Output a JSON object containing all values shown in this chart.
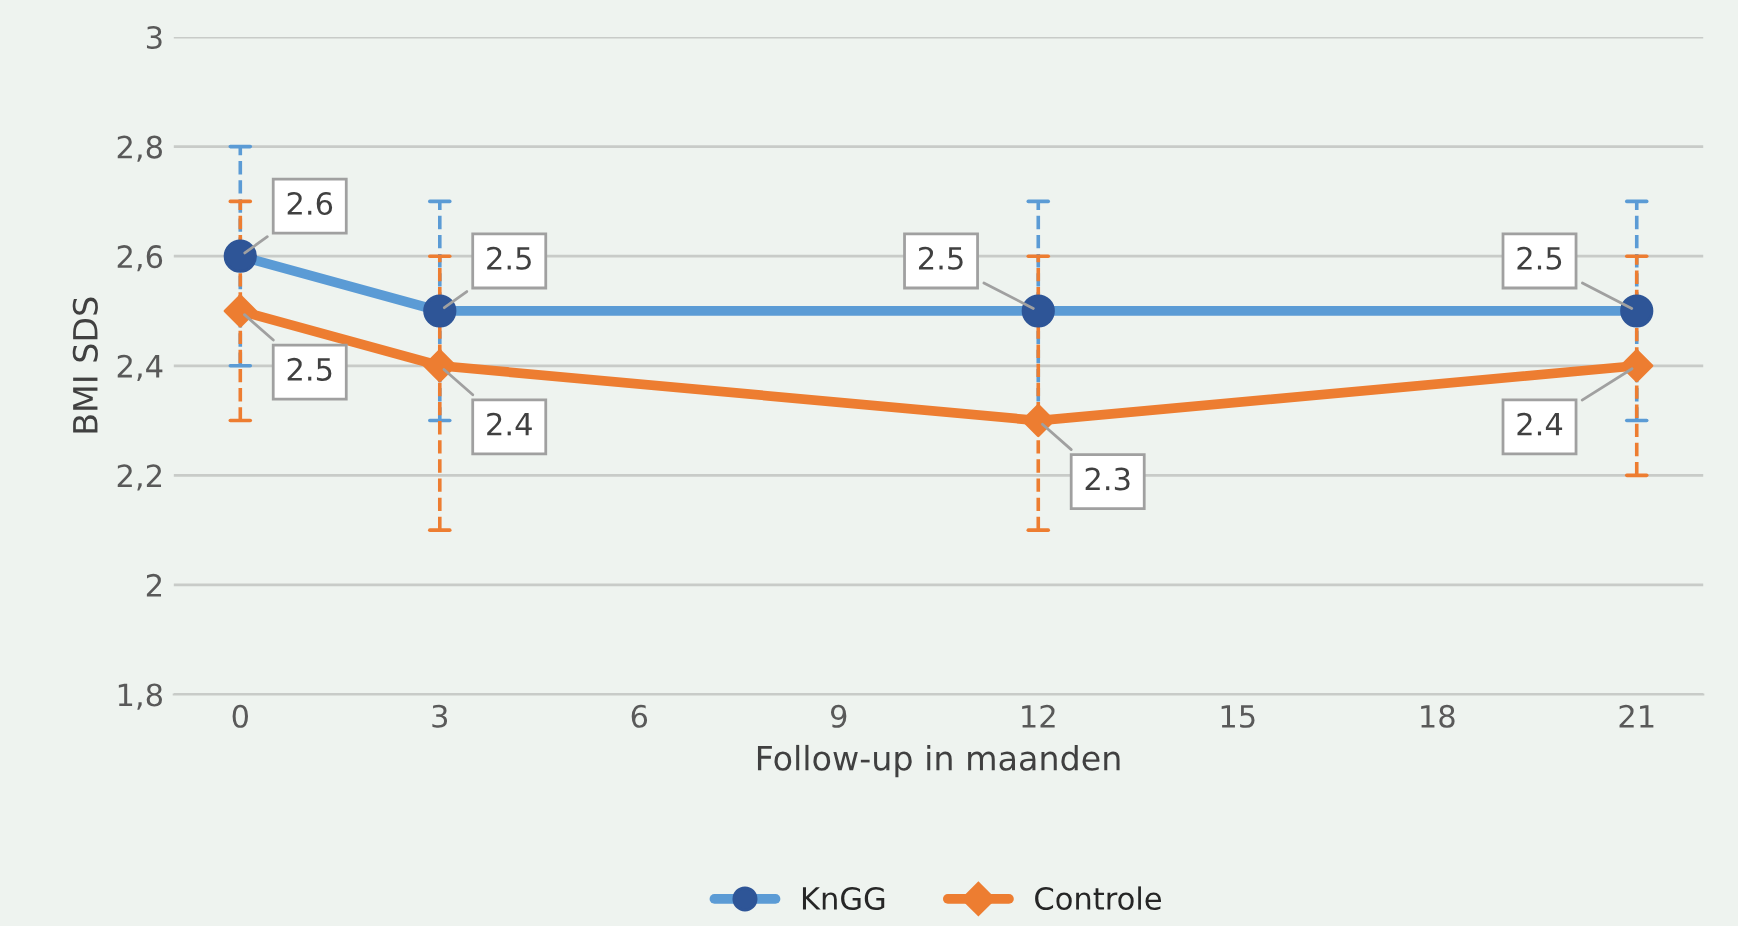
{
  "chart_data": {
    "type": "line",
    "ylabel": "BMI SDS",
    "xlabel": "Follow-up in maanden",
    "x": [
      0,
      3,
      12,
      21
    ],
    "series": [
      {
        "name": "KnGG",
        "color": "#5b9bd5",
        "marker": "circle",
        "values": [
          2.6,
          2.5,
          2.5,
          2.5
        ],
        "errors": [
          0.2,
          0.2,
          0.2,
          0.2
        ]
      },
      {
        "name": "Controle",
        "color": "#ed7d31",
        "marker": "diamond",
        "values": [
          2.5,
          2.4,
          2.3,
          2.4
        ],
        "errors": [
          [
            2.3,
            2.7
          ],
          [
            2.1,
            2.6
          ],
          [
            2.1,
            2.6
          ],
          [
            2.2,
            2.6
          ]
        ]
      }
    ],
    "xlim": [
      -1,
      22
    ],
    "xticks": [
      0,
      3,
      6,
      9,
      12,
      15,
      18,
      21
    ],
    "ylim": [
      1.8,
      3
    ],
    "yticks": [
      {
        "value": 1.8,
        "label": "1,8"
      },
      {
        "value": 2,
        "label": "2"
      },
      {
        "value": 2.2,
        "label": "2,2"
      },
      {
        "value": 2.4,
        "label": "2,4"
      },
      {
        "value": 2.6,
        "label": "2,6"
      },
      {
        "value": 2.8,
        "label": "2,8"
      },
      {
        "value": 3,
        "label": "3"
      }
    ],
    "grid": "y",
    "legend": "bottom",
    "data_labels": true,
    "line_style": "solid"
  }
}
